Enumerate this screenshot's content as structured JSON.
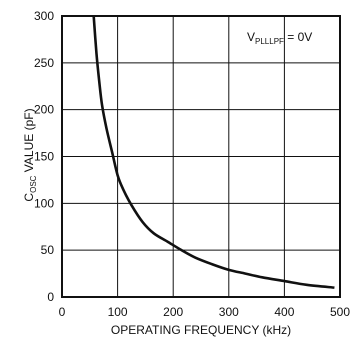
{
  "chart_data": {
    "type": "line",
    "title": "",
    "xlabel": "OPERATING FREQUENCY (kHz)",
    "ylabel": {
      "main": "C",
      "sub": "OSC",
      "rest": " VALUE (pF)"
    },
    "xlim": [
      0,
      500
    ],
    "ylim": [
      0,
      300
    ],
    "xticks": [
      0,
      100,
      200,
      300,
      400,
      500
    ],
    "yticks": [
      0,
      50,
      100,
      150,
      200,
      250,
      300
    ],
    "grid": true,
    "annotation": {
      "main": "V",
      "sub": "PLLLPF",
      "rest": " = 0V"
    },
    "series": [
      {
        "color": "#111111",
        "points": [
          [
            57,
            300
          ],
          [
            62,
            260
          ],
          [
            67,
            230
          ],
          [
            72,
            205
          ],
          [
            80,
            180
          ],
          [
            90,
            155
          ],
          [
            100,
            130
          ],
          [
            110,
            115
          ],
          [
            125,
            98
          ],
          [
            145,
            80
          ],
          [
            165,
            68
          ],
          [
            190,
            59
          ],
          [
            215,
            50
          ],
          [
            240,
            42
          ],
          [
            270,
            35
          ],
          [
            300,
            29
          ],
          [
            330,
            25
          ],
          [
            360,
            21
          ],
          [
            400,
            17
          ],
          [
            440,
            13
          ],
          [
            490,
            10
          ]
        ]
      }
    ]
  }
}
